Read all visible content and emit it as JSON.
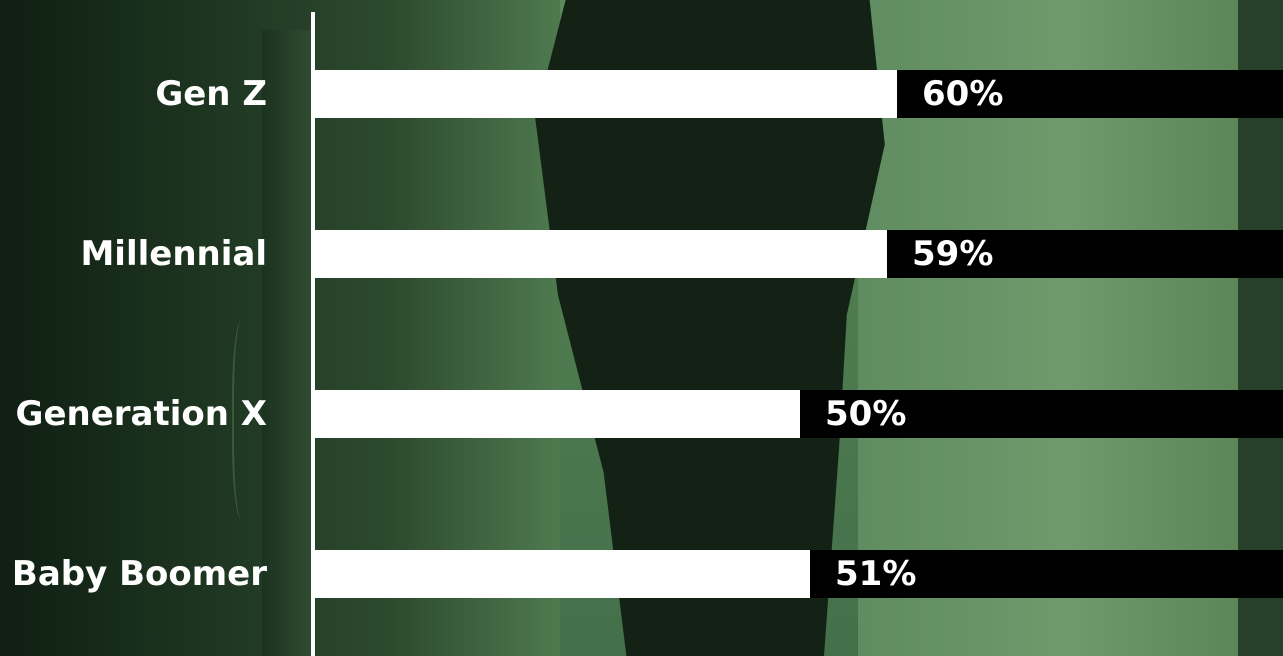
{
  "chart_data": {
    "type": "bar",
    "orientation": "horizontal",
    "categories": [
      "Gen Z",
      "Millennial",
      "Generation X",
      "Baby Boomer"
    ],
    "values": [
      60,
      59,
      50,
      51
    ],
    "value_labels": [
      "60%",
      "59%",
      "50%",
      "51%"
    ],
    "xlim": [
      0,
      100
    ],
    "title": "",
    "xlabel": "",
    "ylabel": "",
    "grid": false,
    "legend": "none",
    "colors": {
      "bar": "#ffffff",
      "track": "#000000",
      "text": "#ffffff",
      "background": "#4f7a4f"
    }
  }
}
